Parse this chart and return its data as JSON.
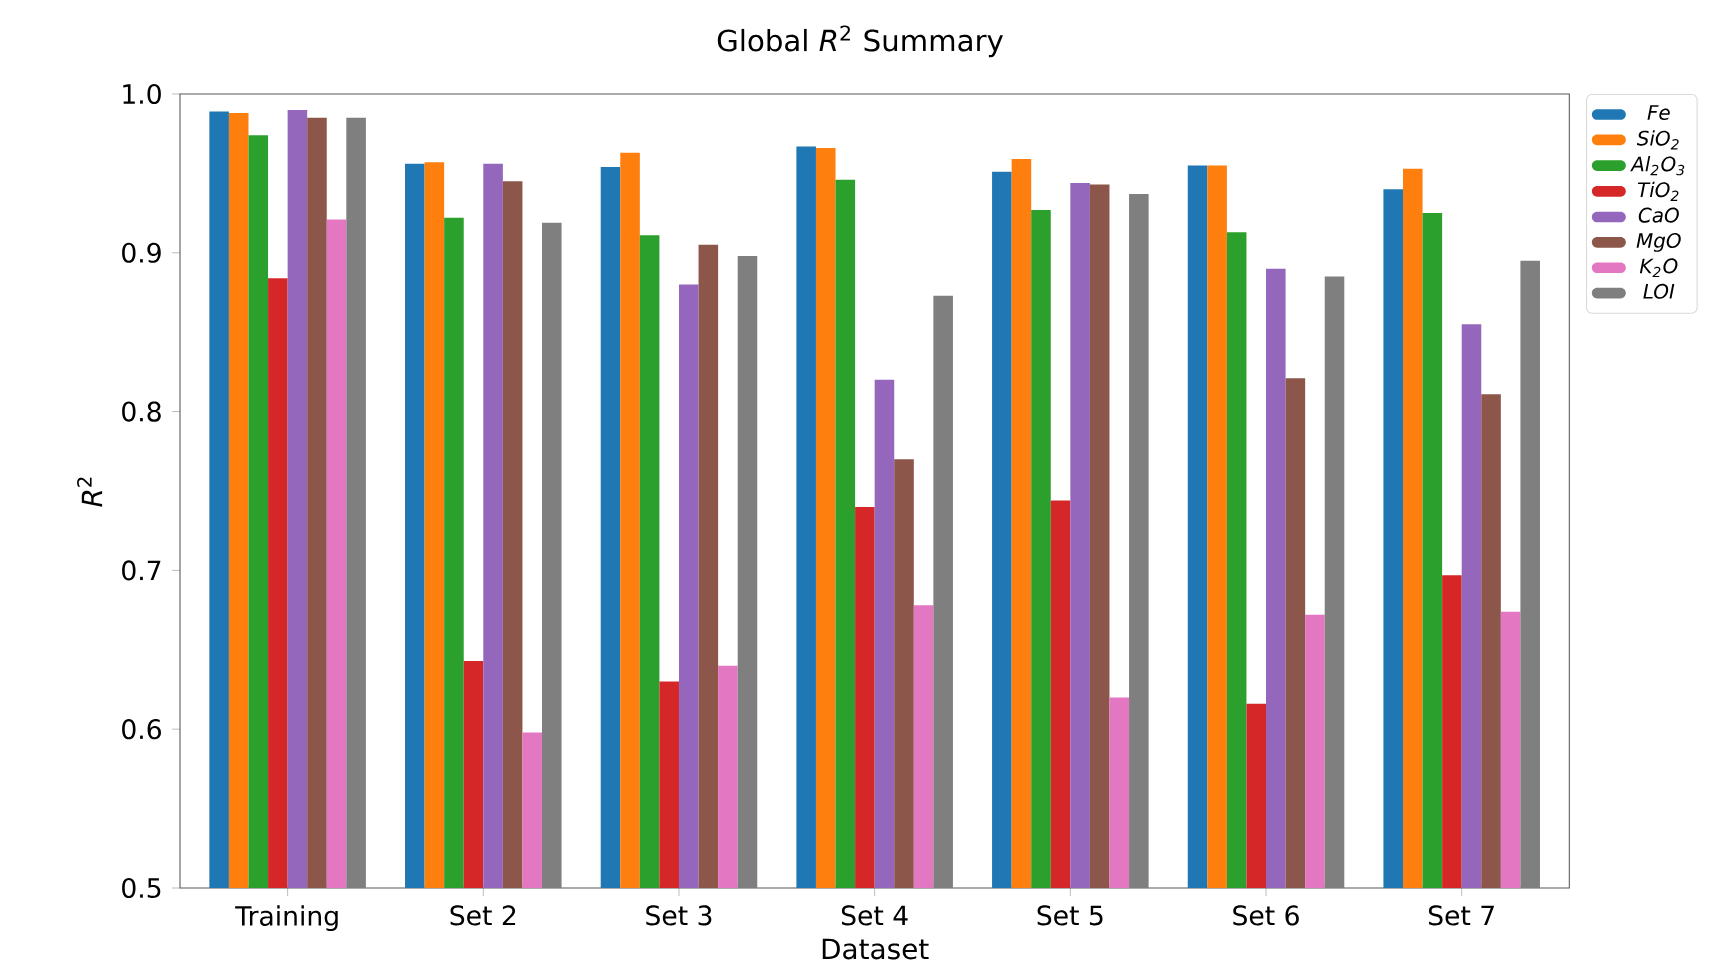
{
  "chart_data": {
    "type": "bar",
    "title": "Global *R*$^{2}$ Summary",
    "xlabel": "Dataset",
    "ylabel": "*R*$^{2}$",
    "categories": [
      "Training",
      "Set 2",
      "Set 3",
      "Set 4",
      "Set 5",
      "Set 6",
      "Set 7"
    ],
    "series": [
      {
        "name": "Fe",
        "color": "#1f77b4",
        "values": [
          0.989,
          0.956,
          0.954,
          0.967,
          0.951,
          0.955,
          0.94
        ]
      },
      {
        "name": "SiO$_{2}$",
        "color": "#ff7f0e",
        "values": [
          0.988,
          0.957,
          0.963,
          0.966,
          0.959,
          0.955,
          0.953
        ]
      },
      {
        "name": "Al$_{2}$O$_{3}$",
        "color": "#2ca02c",
        "values": [
          0.974,
          0.922,
          0.911,
          0.946,
          0.927,
          0.913,
          0.925
        ]
      },
      {
        "name": "TiO$_{2}$",
        "color": "#d62728",
        "values": [
          0.884,
          0.643,
          0.63,
          0.74,
          0.744,
          0.616,
          0.697
        ]
      },
      {
        "name": "CaO",
        "color": "#9467bd",
        "values": [
          0.99,
          0.956,
          0.88,
          0.82,
          0.944,
          0.89,
          0.855
        ]
      },
      {
        "name": "MgO",
        "color": "#8c564b",
        "values": [
          0.985,
          0.945,
          0.905,
          0.77,
          0.943,
          0.821,
          0.811
        ]
      },
      {
        "name": "K$_{2}$O",
        "color": "#e377c2",
        "values": [
          0.921,
          0.598,
          0.64,
          0.678,
          0.62,
          0.672,
          0.674
        ]
      },
      {
        "name": "LOI",
        "color": "#7f7f7f",
        "values": [
          0.985,
          0.919,
          0.898,
          0.873,
          0.937,
          0.885,
          0.895
        ]
      }
    ],
    "ylim": [
      0.5,
      1.0
    ],
    "yticks": [
      {
        "value": 0.5,
        "label": "0.5"
      },
      {
        "value": 0.6,
        "label": "0.6"
      },
      {
        "value": 0.7,
        "label": "0.7"
      },
      {
        "value": 0.8,
        "label": "0.8"
      },
      {
        "value": 0.9,
        "label": "0.9"
      },
      {
        "value": 1.0,
        "label": "1.0"
      }
    ],
    "legend": "top right"
  }
}
